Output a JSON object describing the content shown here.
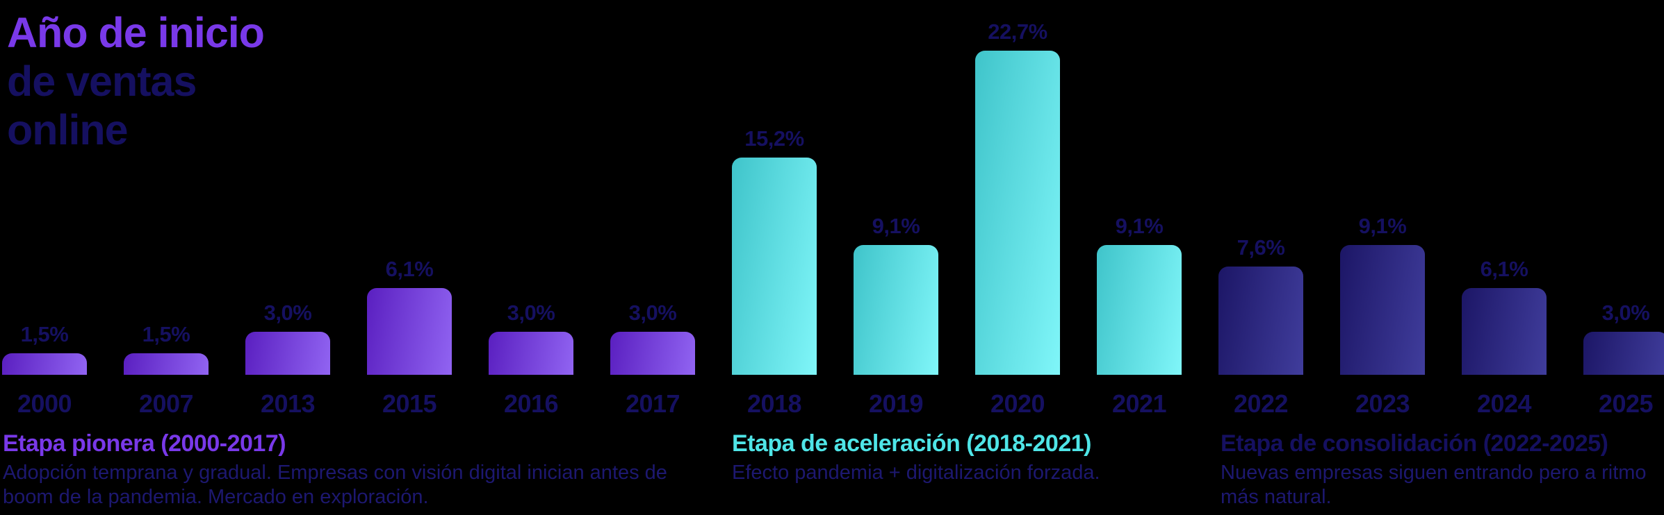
{
  "title": {
    "line1": "Año de inicio",
    "line2": "de ventas",
    "line3": "online"
  },
  "chart_data": {
    "type": "bar",
    "title": "Año de inicio de ventas online",
    "categories": [
      "2000",
      "2007",
      "2013",
      "2015",
      "2016",
      "2017",
      "2018",
      "2019",
      "2020",
      "2021",
      "2022",
      "2023",
      "2024",
      "2025"
    ],
    "values": [
      1.5,
      1.5,
      3.0,
      6.1,
      3.0,
      3.0,
      15.2,
      9.1,
      22.7,
      9.1,
      7.6,
      9.1,
      6.1,
      3.0
    ],
    "value_labels": [
      "1,5%",
      "1,5%",
      "3,0%",
      "6,1%",
      "3,0%",
      "3,0%",
      "15,2%",
      "9,1%",
      "22,7%",
      "9,1%",
      "7,6%",
      "9,1%",
      "6,1%",
      "3,0%"
    ],
    "groups": [
      "pionera",
      "pionera",
      "pionera",
      "pionera",
      "pionera",
      "pionera",
      "aceleracion",
      "aceleracion",
      "aceleracion",
      "aceleracion",
      "consolidacion",
      "consolidacion",
      "consolidacion",
      "consolidacion"
    ],
    "xlabel": "",
    "ylabel": "",
    "ylim": [
      0,
      25
    ],
    "grid": false,
    "legend": false,
    "value_label_position": "above-bar",
    "unit": "%"
  },
  "stages": [
    {
      "title": "Etapa pionera (2000-2017)",
      "desc_line1": "Adopción temprana y gradual. Empresas con visión digital inician antes de",
      "desc_line2": "boom de la pandemia. Mercado en exploración.",
      "color_key": "purple_text"
    },
    {
      "title": "Etapa de aceleración (2018-2021)",
      "desc_line1": "Efecto pandemia + digitalización forzada.",
      "desc_line2": "",
      "color_key": "cyan_text"
    },
    {
      "title": "Etapa de consolidación (2022-2025)",
      "desc_line1": "Nuevas empresas siguen entrando pero a ritmo",
      "desc_line2": "más natural.",
      "color_key": "navy_text"
    }
  ],
  "colors": {
    "background": "#000000",
    "purple_text": "#7939e9",
    "cyan_text": "#4fe5e7",
    "navy_text": "#151060",
    "navy_soft_text": "#1d1870",
    "bar_gradients": {
      "pionera": [
        "#5a1fc0",
        "#9164f2"
      ],
      "aceleracion": [
        "#3fc4ca",
        "#80f6f9"
      ],
      "consolidacion": [
        "#1c1666",
        "#403d9c"
      ]
    }
  }
}
